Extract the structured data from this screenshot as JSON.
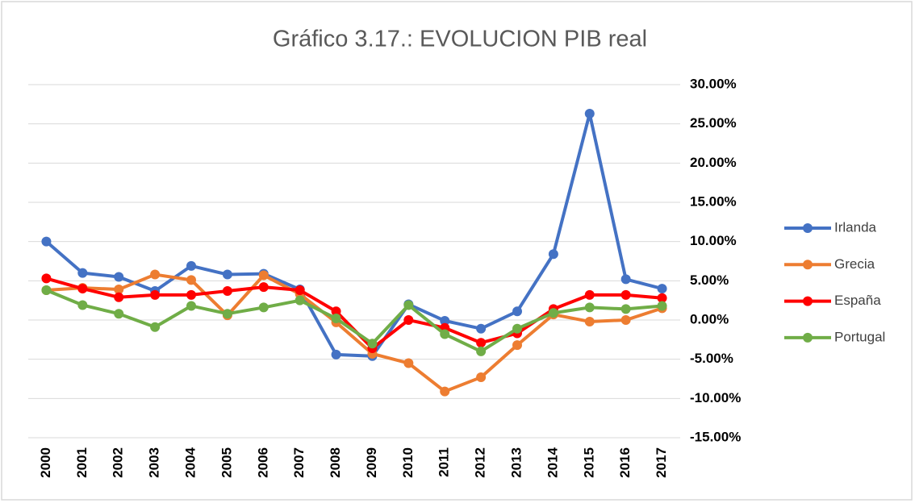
{
  "chart_data": {
    "type": "line",
    "title": "Gráfico 3.17.: EVOLUCION PIB real",
    "categories": [
      "2000",
      "2001",
      "2002",
      "2003",
      "2004",
      "2005",
      "2006",
      "2007",
      "2008",
      "2009",
      "2010",
      "2011",
      "2012",
      "2013",
      "2014",
      "2015",
      "2016",
      "2017"
    ],
    "series": [
      {
        "name": "Irlanda",
        "color": "#4472c4",
        "values": [
          10.0,
          6.0,
          5.5,
          3.7,
          6.9,
          5.8,
          5.9,
          3.9,
          -4.4,
          -4.6,
          2.0,
          -0.1,
          -1.1,
          1.1,
          8.4,
          26.3,
          5.2,
          4.0
        ]
      },
      {
        "name": "Grecia",
        "color": "#ed7d31",
        "values": [
          3.8,
          4.1,
          3.9,
          5.8,
          5.1,
          0.6,
          5.7,
          3.3,
          -0.3,
          -4.3,
          -5.5,
          -9.1,
          -7.3,
          -3.2,
          0.7,
          -0.2,
          0.0,
          1.5
        ]
      },
      {
        "name": "España",
        "color": "#ff0000",
        "values": [
          5.3,
          4.0,
          2.9,
          3.2,
          3.2,
          3.7,
          4.2,
          3.8,
          1.1,
          -3.6,
          0.0,
          -1.0,
          -2.9,
          -1.7,
          1.4,
          3.2,
          3.2,
          2.8
        ]
      },
      {
        "name": "Portugal",
        "color": "#70ad47",
        "values": [
          3.8,
          1.9,
          0.8,
          -0.9,
          1.8,
          0.8,
          1.6,
          2.5,
          0.2,
          -3.0,
          1.9,
          -1.8,
          -4.0,
          -1.1,
          0.9,
          1.6,
          1.4,
          1.8
        ]
      }
    ],
    "ylim": [
      -15,
      30
    ],
    "yticks": [
      {
        "value": -15,
        "label": "-15.00%"
      },
      {
        "value": -10,
        "label": "-10.00%"
      },
      {
        "value": -5,
        "label": "-5.00%"
      },
      {
        "value": 0,
        "label": "0.00%"
      },
      {
        "value": 5,
        "label": "5.00%"
      },
      {
        "value": 10,
        "label": "10.00%"
      },
      {
        "value": 15,
        "label": "15.00%"
      },
      {
        "value": 20,
        "label": "20.00%"
      },
      {
        "value": 25,
        "label": "25.00%"
      },
      {
        "value": 30,
        "label": "30.00%"
      }
    ],
    "grid": true,
    "legend": "right"
  }
}
